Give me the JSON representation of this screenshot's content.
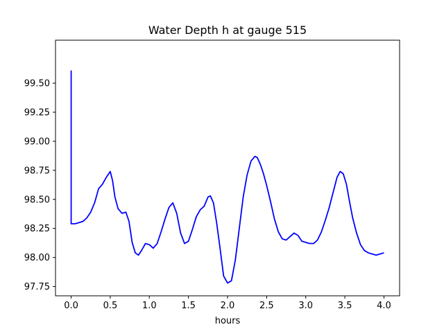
{
  "chart_data": {
    "type": "line",
    "title": "Water Depth h at gauge 515",
    "xlabel": "hours",
    "ylabel": "",
    "xlim": [
      -0.2,
      4.2
    ],
    "ylim": [
      97.67,
      99.87
    ],
    "xticks": [
      0.0,
      0.5,
      1.0,
      1.5,
      2.0,
      2.5,
      3.0,
      3.5,
      4.0
    ],
    "xtick_labels": [
      "0.0",
      "0.5",
      "1.0",
      "1.5",
      "2.0",
      "2.5",
      "3.0",
      "3.5",
      "4.0"
    ],
    "yticks": [
      97.75,
      98.0,
      98.25,
      98.5,
      98.75,
      99.0,
      99.25,
      99.5
    ],
    "ytick_labels": [
      "97.75",
      "98.00",
      "98.25",
      "98.50",
      "98.75",
      "99.00",
      "99.25",
      "99.50"
    ],
    "grid": false,
    "series": [
      {
        "color": "#0000ff",
        "x": [
          0.0,
          0.0,
          0.05,
          0.1,
          0.15,
          0.2,
          0.25,
          0.3,
          0.35,
          0.4,
          0.45,
          0.5,
          0.53,
          0.56,
          0.6,
          0.65,
          0.7,
          0.74,
          0.78,
          0.82,
          0.86,
          0.9,
          0.95,
          1.0,
          1.05,
          1.1,
          1.15,
          1.2,
          1.25,
          1.3,
          1.35,
          1.4,
          1.45,
          1.5,
          1.55,
          1.6,
          1.65,
          1.7,
          1.75,
          1.78,
          1.82,
          1.86,
          1.9,
          1.95,
          2.0,
          2.05,
          2.1,
          2.15,
          2.2,
          2.25,
          2.3,
          2.35,
          2.38,
          2.42,
          2.46,
          2.5,
          2.55,
          2.6,
          2.65,
          2.7,
          2.75,
          2.8,
          2.85,
          2.9,
          2.95,
          3.0,
          3.05,
          3.1,
          3.15,
          3.2,
          3.25,
          3.3,
          3.35,
          3.4,
          3.44,
          3.48,
          3.52,
          3.56,
          3.6,
          3.65,
          3.7,
          3.75,
          3.8,
          3.85,
          3.9,
          3.95,
          4.0
        ],
        "y": [
          99.61,
          98.29,
          98.29,
          98.3,
          98.31,
          98.34,
          98.39,
          98.47,
          98.59,
          98.63,
          98.69,
          98.74,
          98.66,
          98.52,
          98.42,
          98.38,
          98.39,
          98.31,
          98.13,
          98.04,
          98.02,
          98.06,
          98.12,
          98.11,
          98.08,
          98.12,
          98.22,
          98.33,
          98.43,
          98.47,
          98.38,
          98.21,
          98.12,
          98.14,
          98.24,
          98.35,
          98.41,
          98.44,
          98.52,
          98.53,
          98.47,
          98.3,
          98.1,
          97.84,
          97.78,
          97.8,
          97.98,
          98.25,
          98.52,
          98.71,
          98.83,
          98.87,
          98.86,
          98.8,
          98.72,
          98.62,
          98.48,
          98.33,
          98.22,
          98.16,
          98.15,
          98.18,
          98.21,
          98.19,
          98.14,
          98.13,
          98.12,
          98.12,
          98.15,
          98.22,
          98.32,
          98.43,
          98.56,
          98.69,
          98.74,
          98.72,
          98.63,
          98.48,
          98.34,
          98.21,
          98.11,
          98.06,
          98.04,
          98.03,
          98.02,
          98.03,
          98.04
        ]
      }
    ]
  }
}
